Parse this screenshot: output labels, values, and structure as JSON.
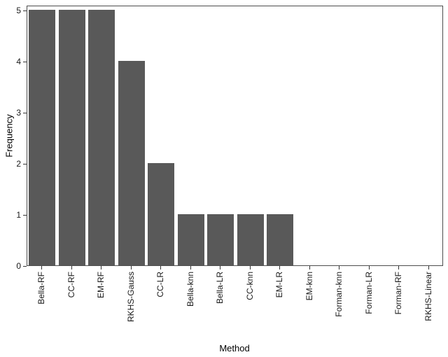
{
  "chart_data": {
    "type": "bar",
    "categories": [
      "Bella-RF",
      "CC-RF",
      "EM-RF",
      "RKHS-Gauss",
      "CC-LR",
      "Bella-knn",
      "Bella-LR",
      "CC-knn",
      "EM-LR",
      "EM-knn",
      "Forman-knn",
      "Forman-LR",
      "Forman-RF",
      "RKHS-Linear"
    ],
    "values": [
      5,
      5,
      5,
      4,
      2,
      1,
      1,
      1,
      1,
      0,
      0,
      0,
      0,
      0
    ],
    "title": "",
    "xlabel": "Method",
    "ylabel": "Frequency",
    "ylim": [
      0,
      5
    ],
    "yticks": [
      0,
      1,
      2,
      3,
      4,
      5
    ],
    "bar_color": "#595959",
    "panel_border_color": "#4d4d4d",
    "grid": false,
    "legend": false,
    "x_tick_label_rotation_deg": 90
  }
}
